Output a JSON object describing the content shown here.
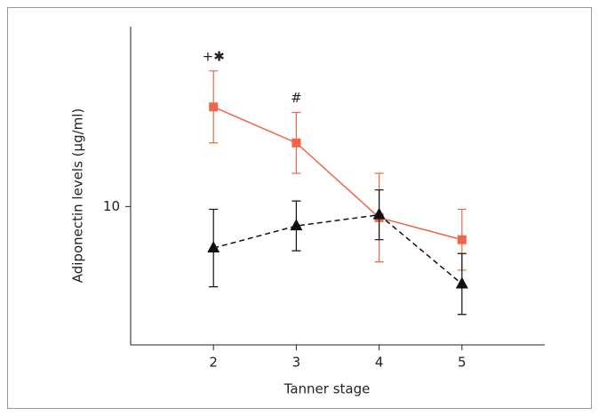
{
  "chart_data": {
    "type": "line",
    "xlabel": "Tanner stage",
    "ylabel": "Adiponectin levels (µg/ml)",
    "x": [
      2,
      3,
      4,
      5
    ],
    "xlim": [
      1,
      6
    ],
    "xticks": [
      2,
      3,
      4,
      5
    ],
    "ylim": [
      5,
      16.5
    ],
    "yticks": [
      10
    ],
    "series": [
      {
        "color": "#ef6548",
        "marker": "square",
        "dashed": false,
        "values": [
          13.6,
          12.3,
          9.6,
          8.8
        ],
        "errors": [
          1.3,
          1.1,
          1.6,
          1.1
        ]
      },
      {
        "color": "#111111",
        "marker": "triangle",
        "dashed": true,
        "values": [
          8.5,
          9.3,
          9.7,
          7.2
        ],
        "errors": [
          1.4,
          0.9,
          0.9,
          1.1
        ]
      }
    ],
    "annotations": [
      {
        "x": 2,
        "text": "+✱"
      },
      {
        "x": 3,
        "text": "#"
      }
    ]
  }
}
